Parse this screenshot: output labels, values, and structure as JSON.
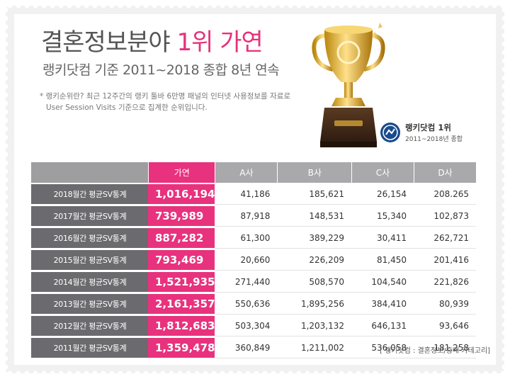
{
  "headline": {
    "main": "결혼정보분야",
    "highlight": "1위 가연"
  },
  "subline": "랭키닷컴 기준 2011~2018 종합 8년 연속",
  "note": {
    "line1": "* 랭키순위란? 최근 12주간의 랭키 툴바 6만명 패널의 인터넷 사용정보를 자료로",
    "line2": "User Session Visits 기준으로 집계한 순위입니다."
  },
  "badge": {
    "title": "랭키닷컴 1위",
    "sub": "2011~2018년 종합"
  },
  "colors": {
    "pink": "#e8327e",
    "dark_row": "#6b6b6f",
    "header_gray": "#a9a9ac",
    "frame": "#f1f1f1"
  },
  "table": {
    "headers": [
      "가연",
      "A사",
      "B사",
      "C사",
      "D사"
    ],
    "rows": [
      {
        "label": "2018월간 평균SV통계",
        "values": [
          "1,016,194",
          "41,186",
          "185,621",
          "26,154",
          "208.265"
        ]
      },
      {
        "label": "2017월간 평균SV통계",
        "values": [
          "739,989",
          "87,918",
          "148,531",
          "15,340",
          "102,873"
        ]
      },
      {
        "label": "2016월간 평균SV통계",
        "values": [
          "887,282",
          "61,300",
          "389,229",
          "30,411",
          "262,721"
        ]
      },
      {
        "label": "2015월간 평균SV통계",
        "values": [
          "793,469",
          "20,660",
          "226,209",
          "81,450",
          "201,416"
        ]
      },
      {
        "label": "2014월간 평균SV통계",
        "values": [
          "1,521,935",
          "271,440",
          "508,570",
          "104,540",
          "221,826"
        ]
      },
      {
        "label": "2013월간 평균SV통계",
        "values": [
          "2,161,357",
          "550,636",
          "1,895,256",
          "384,410",
          "80,939"
        ]
      },
      {
        "label": "2012월간 평균SV통계",
        "values": [
          "1,812,683",
          "503,304",
          "1,203,132",
          "646,131",
          "93,646"
        ]
      },
      {
        "label": "2011월간 평균SV통계",
        "values": [
          "1,359,478",
          "360,849",
          "1,211,002",
          "536,058",
          "181,258"
        ]
      }
    ]
  },
  "source": "[ 랭키닷컴 : 결혼정보/중매 카테고리]"
}
